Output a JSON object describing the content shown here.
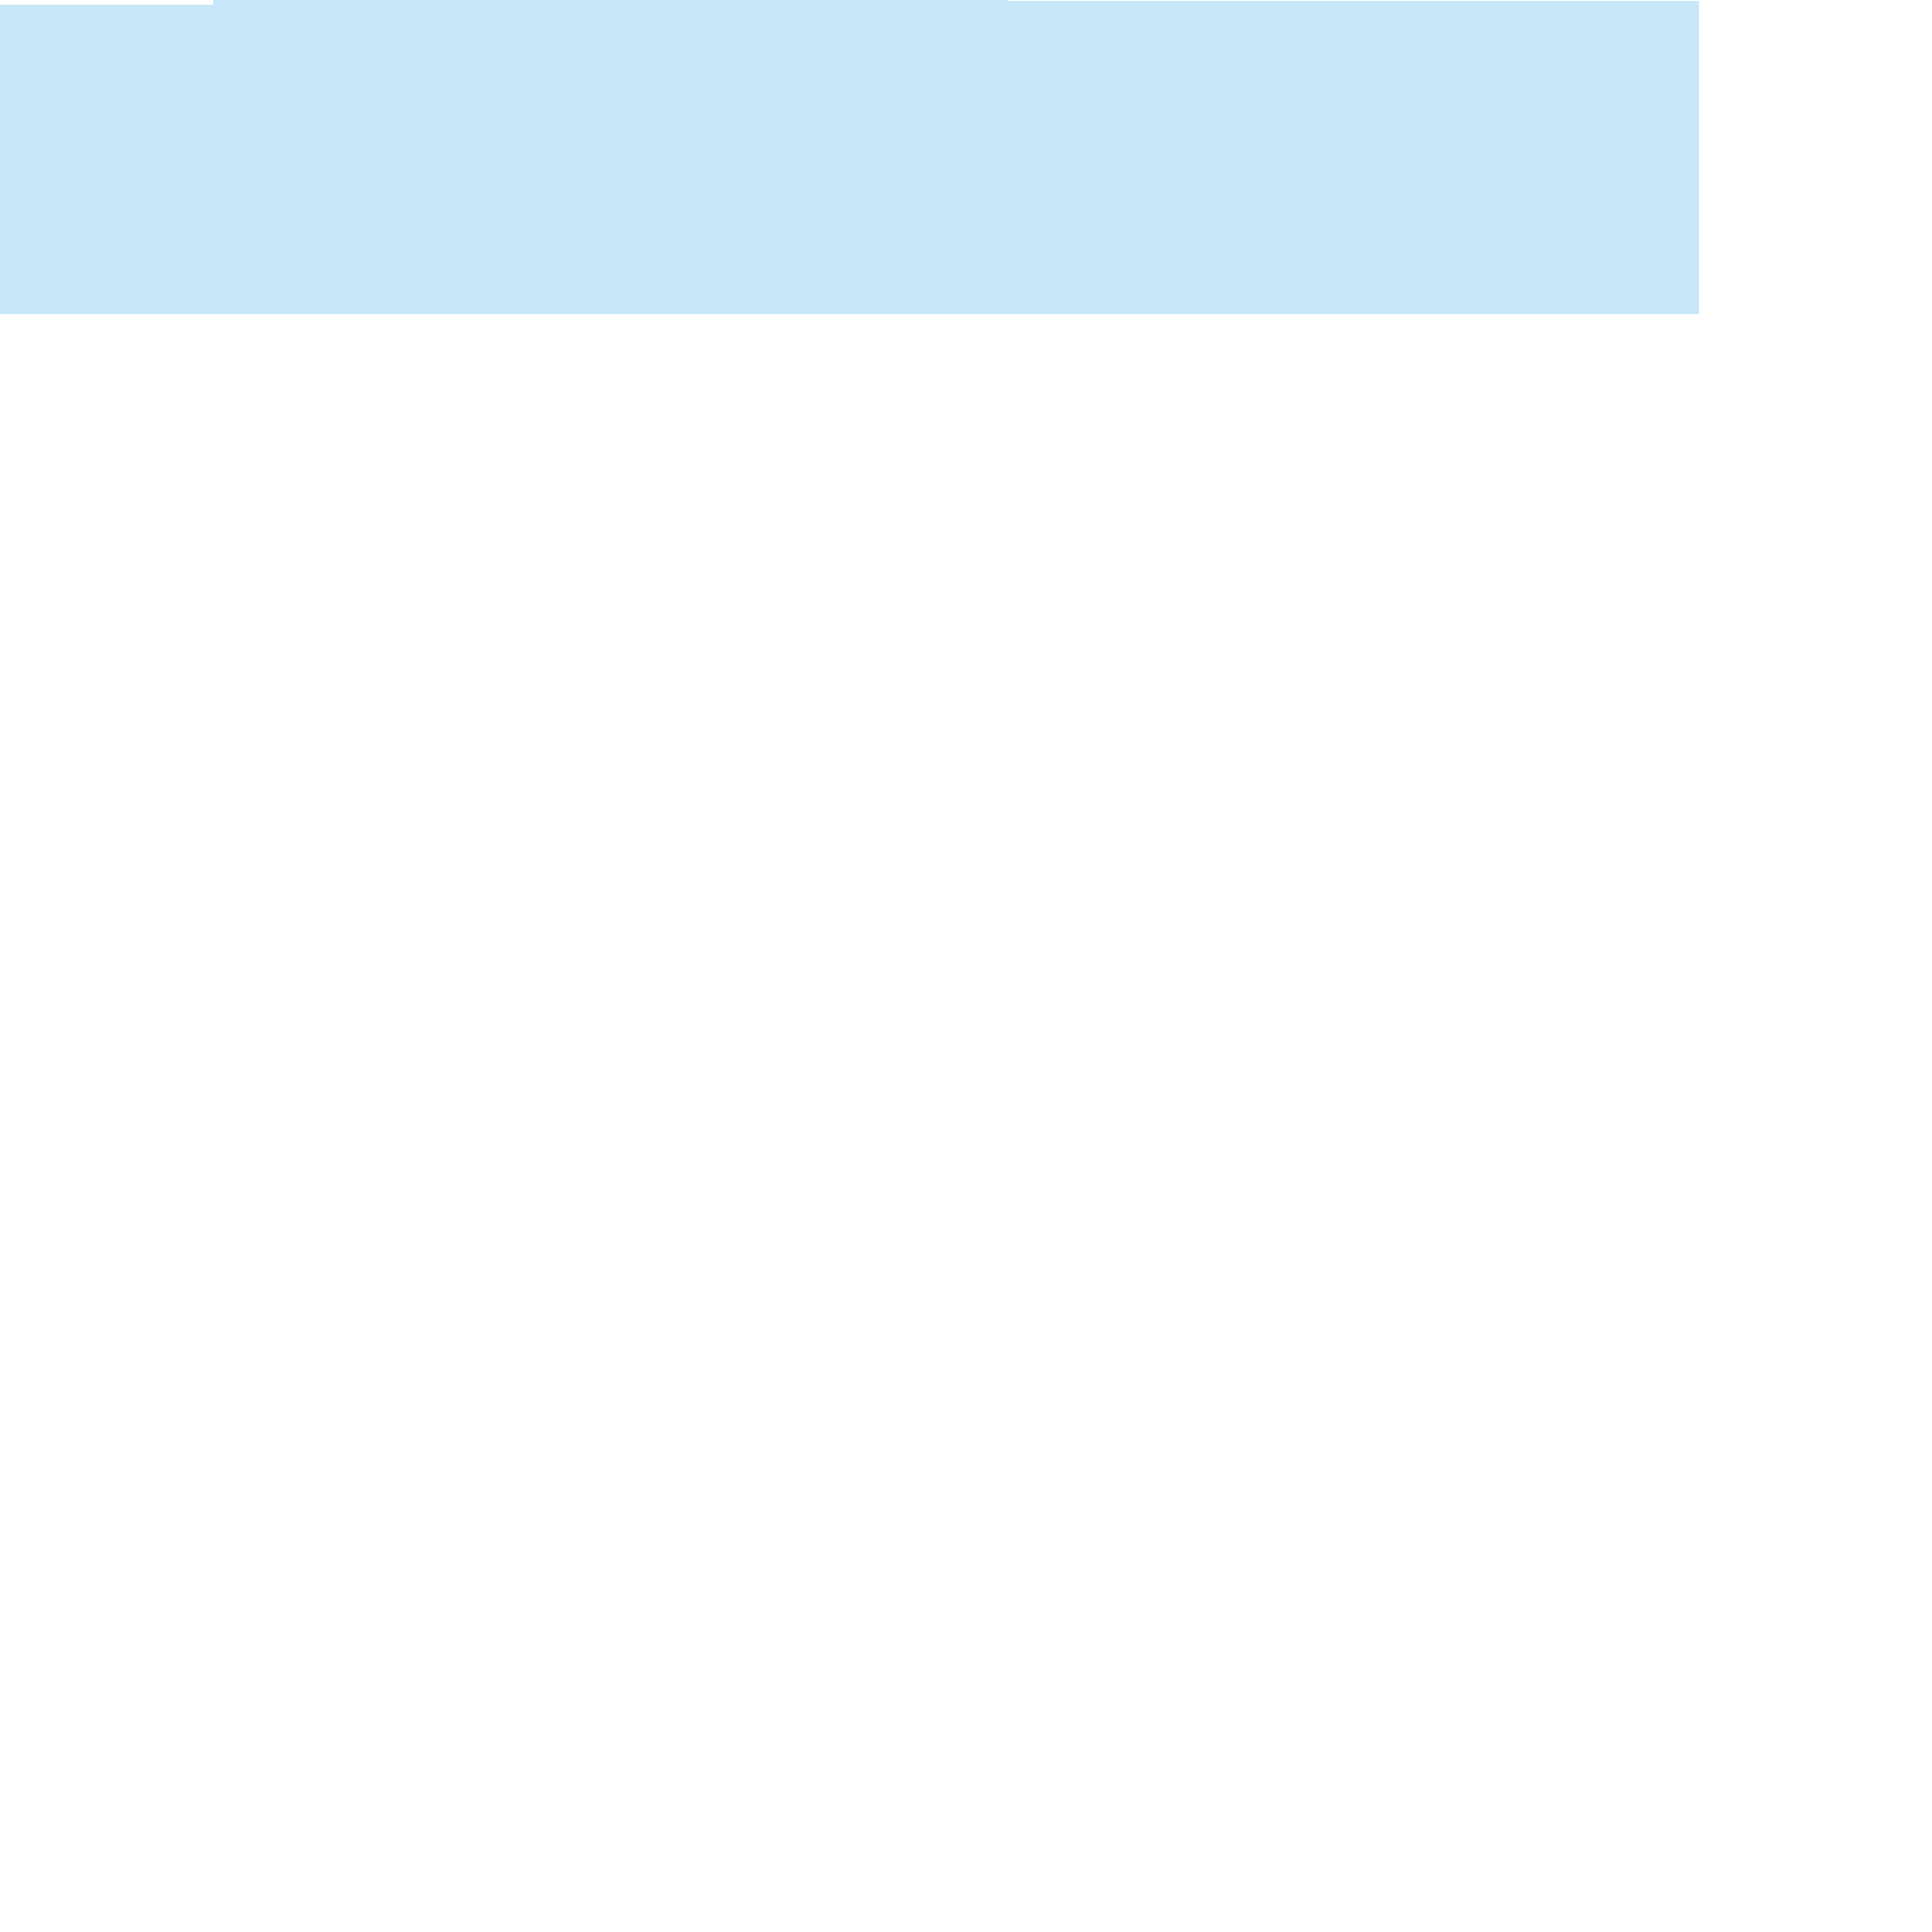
{
  "colors": {
    "background": "#ffffff",
    "selection_highlight": "#c8e7f9"
  }
}
